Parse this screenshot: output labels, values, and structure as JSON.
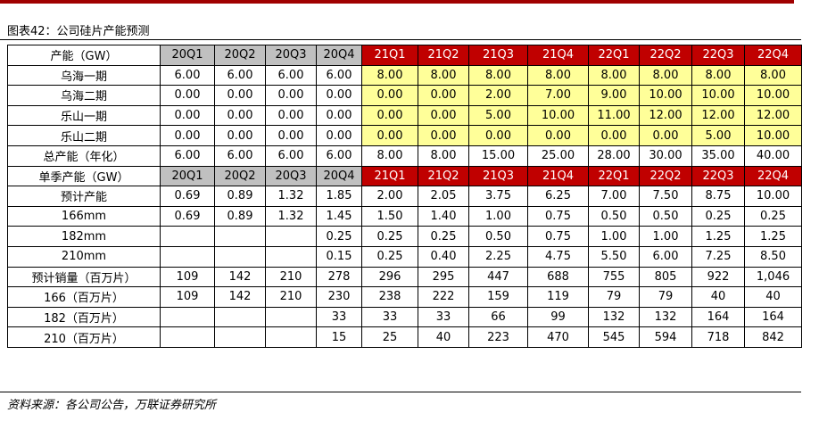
{
  "title": "图表42：公司硅片产能预测",
  "table": {
    "rows": [
      [
        "产能（GW）",
        "20Q1",
        "20Q2",
        "20Q3",
        "20Q4",
        "21Q1",
        "21Q2",
        "21Q3",
        "21Q4",
        "22Q1",
        "22Q2",
        "22Q3",
        "22Q4"
      ],
      [
        "乌海一期",
        "6.00",
        "6.00",
        "6.00",
        "6.00",
        "8.00",
        "8.00",
        "8.00",
        "8.00",
        "8.00",
        "8.00",
        "8.00",
        "8.00"
      ],
      [
        "乌海二期",
        "0.00",
        "0.00",
        "0.00",
        "0.00",
        "0.00",
        "0.00",
        "2.00",
        "7.00",
        "9.00",
        "10.00",
        "10.00",
        "10.00"
      ],
      [
        "乐山一期",
        "0.00",
        "0.00",
        "0.00",
        "0.00",
        "0.00",
        "0.00",
        "5.00",
        "10.00",
        "11.00",
        "12.00",
        "12.00",
        "12.00"
      ],
      [
        "乐山二期",
        "0.00",
        "0.00",
        "0.00",
        "0.00",
        "0.00",
        "0.00",
        "0.00",
        "0.00",
        "0.00",
        "0.00",
        "5.00",
        "10.00"
      ],
      [
        "总产能（年化）",
        "6.00",
        "6.00",
        "6.00",
        "6.00",
        "8.00",
        "8.00",
        "15.00",
        "25.00",
        "28.00",
        "30.00",
        "35.00",
        "40.00"
      ],
      [
        "单季产能（GW）",
        "20Q1",
        "20Q2",
        "20Q3",
        "20Q4",
        "21Q1",
        "21Q2",
        "21Q3",
        "21Q4",
        "22Q1",
        "22Q2",
        "22Q3",
        "22Q4"
      ],
      [
        "预计产能",
        "0.69",
        "0.89",
        "1.32",
        "1.85",
        "2.00",
        "2.05",
        "3.75",
        "6.25",
        "7.00",
        "7.50",
        "8.75",
        "10.00"
      ],
      [
        "166mm",
        "0.69",
        "0.89",
        "1.32",
        "1.45",
        "1.50",
        "1.40",
        "1.00",
        "0.75",
        "0.50",
        "0.50",
        "0.25",
        "0.25"
      ],
      [
        "182mm",
        null,
        null,
        null,
        "0.25",
        "0.25",
        "0.25",
        "0.50",
        "0.75",
        "1.00",
        "1.00",
        "1.25",
        "1.25"
      ],
      [
        "210mm",
        null,
        null,
        null,
        "0.15",
        "0.25",
        "0.40",
        "2.25",
        "4.75",
        "5.50",
        "6.00",
        "7.25",
        "8.50"
      ],
      [
        "预计销量（百万片）",
        "109",
        "142",
        "210",
        "278",
        "296",
        "295",
        "447",
        "688",
        "755",
        "805",
        "922",
        "1,046"
      ],
      [
        "166（百万片）",
        "109",
        "142",
        "210",
        "230",
        "238",
        "222",
        "159",
        "119",
        "79",
        "79",
        "40",
        "40"
      ],
      [
        "182（百万片）",
        null,
        null,
        null,
        "33",
        "33",
        "33",
        "66",
        "99",
        "132",
        "132",
        "164",
        "164"
      ],
      [
        "210（百万片）",
        null,
        null,
        null,
        "15",
        "25",
        "40",
        "223",
        "470",
        "545",
        "594",
        "718",
        "842"
      ]
    ]
  },
  "source": "资料来源：各公司公告，万联证券研究所"
}
